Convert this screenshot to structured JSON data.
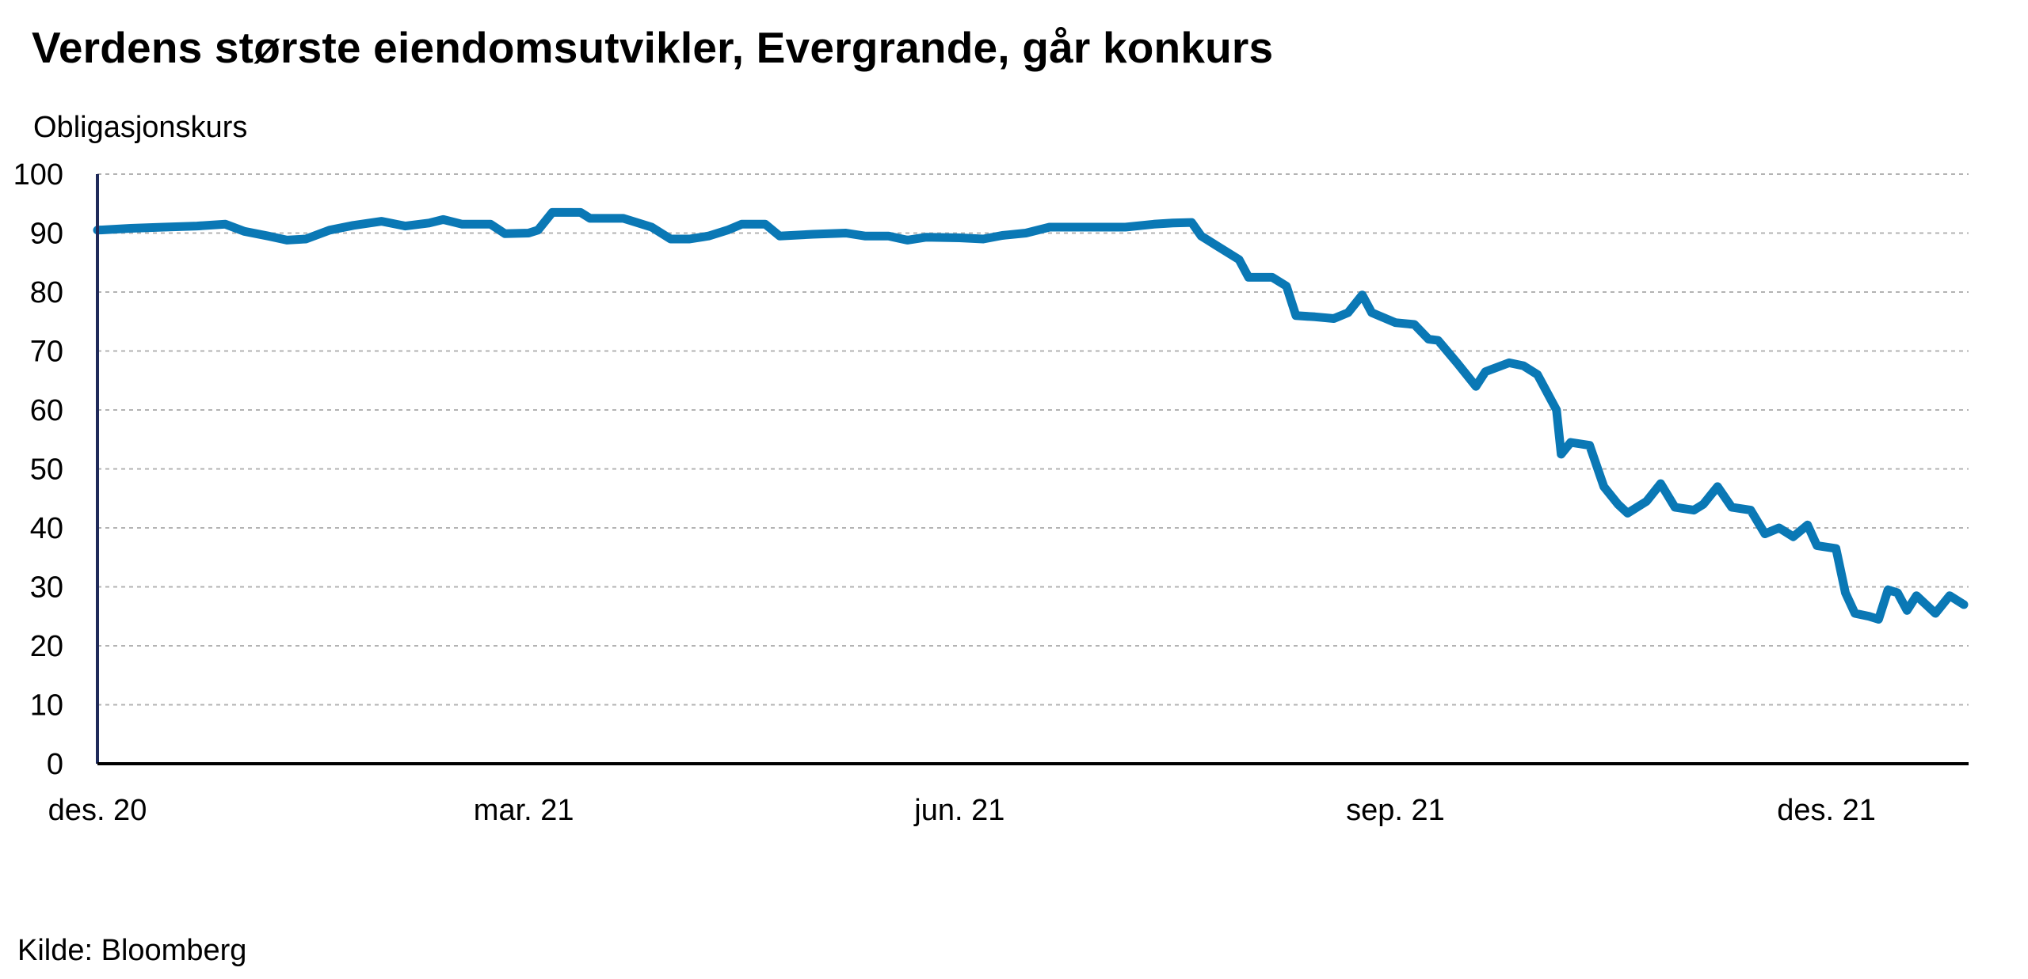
{
  "title": "Verdens største eiendomsutvikler, Evergrande, går konkurs",
  "source": "Kilde: Bloomberg",
  "colors": {
    "line": "#0a78b5",
    "axis": "#1f2a5a",
    "grid": "#b3b3b3"
  },
  "chart_data": {
    "type": "line",
    "title": "Verdens største eiendomsutvikler, Evergrande, går konkurs",
    "ylabel": "Obligasjonskurs",
    "xlabel": "",
    "ylim": [
      0,
      100
    ],
    "yticks": [
      0,
      10,
      20,
      30,
      40,
      50,
      60,
      70,
      80,
      90,
      100
    ],
    "grid": true,
    "xlim": [
      "2020-12-01",
      "2021-12-31"
    ],
    "xticks": [
      {
        "date": "2020-12-01",
        "label": "des. 20"
      },
      {
        "date": "2021-03-01",
        "label": "mar. 21"
      },
      {
        "date": "2021-06-01",
        "label": "jun. 21"
      },
      {
        "date": "2021-09-01",
        "label": "sep. 21"
      },
      {
        "date": "2021-12-01",
        "label": "des. 21"
      }
    ],
    "series": [
      {
        "values": [
          [
            "2020-12-01",
            90.5
          ],
          [
            "2020-12-08",
            90.8
          ],
          [
            "2020-12-15",
            91.0
          ],
          [
            "2020-12-22",
            91.2
          ],
          [
            "2020-12-28",
            91.5
          ],
          [
            "2021-01-01",
            90.3
          ],
          [
            "2021-01-06",
            89.5
          ],
          [
            "2021-01-10",
            88.8
          ],
          [
            "2021-01-14",
            89.0
          ],
          [
            "2021-01-19",
            90.5
          ],
          [
            "2021-01-24",
            91.3
          ],
          [
            "2021-01-30",
            92.0
          ],
          [
            "2021-02-04",
            91.2
          ],
          [
            "2021-02-09",
            91.7
          ],
          [
            "2021-02-12",
            92.3
          ],
          [
            "2021-02-16",
            91.5
          ],
          [
            "2021-02-22",
            91.5
          ],
          [
            "2021-02-25",
            89.9
          ],
          [
            "2021-03-02",
            90.0
          ],
          [
            "2021-03-04",
            90.5
          ],
          [
            "2021-03-07",
            93.5
          ],
          [
            "2021-03-13",
            93.5
          ],
          [
            "2021-03-15",
            92.5
          ],
          [
            "2021-03-22",
            92.5
          ],
          [
            "2021-03-28",
            91.0
          ],
          [
            "2021-04-01",
            89.0
          ],
          [
            "2021-04-05",
            89.0
          ],
          [
            "2021-04-09",
            89.5
          ],
          [
            "2021-04-13",
            90.5
          ],
          [
            "2021-04-16",
            91.5
          ],
          [
            "2021-04-21",
            91.5
          ],
          [
            "2021-04-24",
            89.5
          ],
          [
            "2021-05-01",
            89.8
          ],
          [
            "2021-05-08",
            90.0
          ],
          [
            "2021-05-12",
            89.5
          ],
          [
            "2021-05-17",
            89.5
          ],
          [
            "2021-05-21",
            88.8
          ],
          [
            "2021-05-25",
            89.3
          ],
          [
            "2021-06-01",
            89.2
          ],
          [
            "2021-06-06",
            89.0
          ],
          [
            "2021-06-10",
            89.6
          ],
          [
            "2021-06-15",
            90.0
          ],
          [
            "2021-06-20",
            91.0
          ],
          [
            "2021-06-26",
            91.0
          ],
          [
            "2021-07-01",
            91.0
          ],
          [
            "2021-07-06",
            91.0
          ],
          [
            "2021-07-12",
            91.5
          ],
          [
            "2021-07-16",
            91.7
          ],
          [
            "2021-07-20",
            91.8
          ],
          [
            "2021-07-22",
            89.5
          ],
          [
            "2021-07-25",
            88.0
          ],
          [
            "2021-07-30",
            85.5
          ],
          [
            "2021-08-01",
            82.5
          ],
          [
            "2021-08-06",
            82.5
          ],
          [
            "2021-08-09",
            81.0
          ],
          [
            "2021-08-11",
            76.0
          ],
          [
            "2021-08-15",
            75.8
          ],
          [
            "2021-08-19",
            75.5
          ],
          [
            "2021-08-22",
            76.5
          ],
          [
            "2021-08-25",
            79.5
          ],
          [
            "2021-08-27",
            76.5
          ],
          [
            "2021-09-01",
            74.8
          ],
          [
            "2021-09-05",
            74.5
          ],
          [
            "2021-09-08",
            72.0
          ],
          [
            "2021-09-10",
            71.8
          ],
          [
            "2021-09-14",
            68.0
          ],
          [
            "2021-09-18",
            64.0
          ],
          [
            "2021-09-20",
            66.5
          ],
          [
            "2021-09-25",
            68.0
          ],
          [
            "2021-09-28",
            67.5
          ],
          [
            "2021-10-01",
            66.0
          ],
          [
            "2021-10-05",
            60.0
          ],
          [
            "2021-10-06",
            52.5
          ],
          [
            "2021-10-08",
            54.5
          ],
          [
            "2021-10-12",
            54.0
          ],
          [
            "2021-10-15",
            47.0
          ],
          [
            "2021-10-18",
            44.0
          ],
          [
            "2021-10-20",
            42.5
          ],
          [
            "2021-10-24",
            44.5
          ],
          [
            "2021-10-27",
            47.5
          ],
          [
            "2021-10-30",
            43.5
          ],
          [
            "2021-11-03",
            43.0
          ],
          [
            "2021-11-05",
            44.0
          ],
          [
            "2021-11-08",
            47.0
          ],
          [
            "2021-11-11",
            43.5
          ],
          [
            "2021-11-15",
            43.0
          ],
          [
            "2021-11-18",
            39.0
          ],
          [
            "2021-11-21",
            40.0
          ],
          [
            "2021-11-24",
            38.5
          ],
          [
            "2021-11-27",
            40.5
          ],
          [
            "2021-11-29",
            37.0
          ],
          [
            "2021-12-03",
            36.5
          ],
          [
            "2021-12-05",
            29.0
          ],
          [
            "2021-12-07",
            25.5
          ],
          [
            "2021-12-10",
            25.0
          ],
          [
            "2021-12-12",
            24.5
          ],
          [
            "2021-12-14",
            29.5
          ],
          [
            "2021-12-16",
            29.0
          ],
          [
            "2021-12-18",
            26.0
          ],
          [
            "2021-12-20",
            28.5
          ],
          [
            "2021-12-22",
            27.0
          ],
          [
            "2021-12-24",
            25.5
          ],
          [
            "2021-12-27",
            28.5
          ],
          [
            "2021-12-30",
            27.0
          ]
        ]
      }
    ]
  }
}
